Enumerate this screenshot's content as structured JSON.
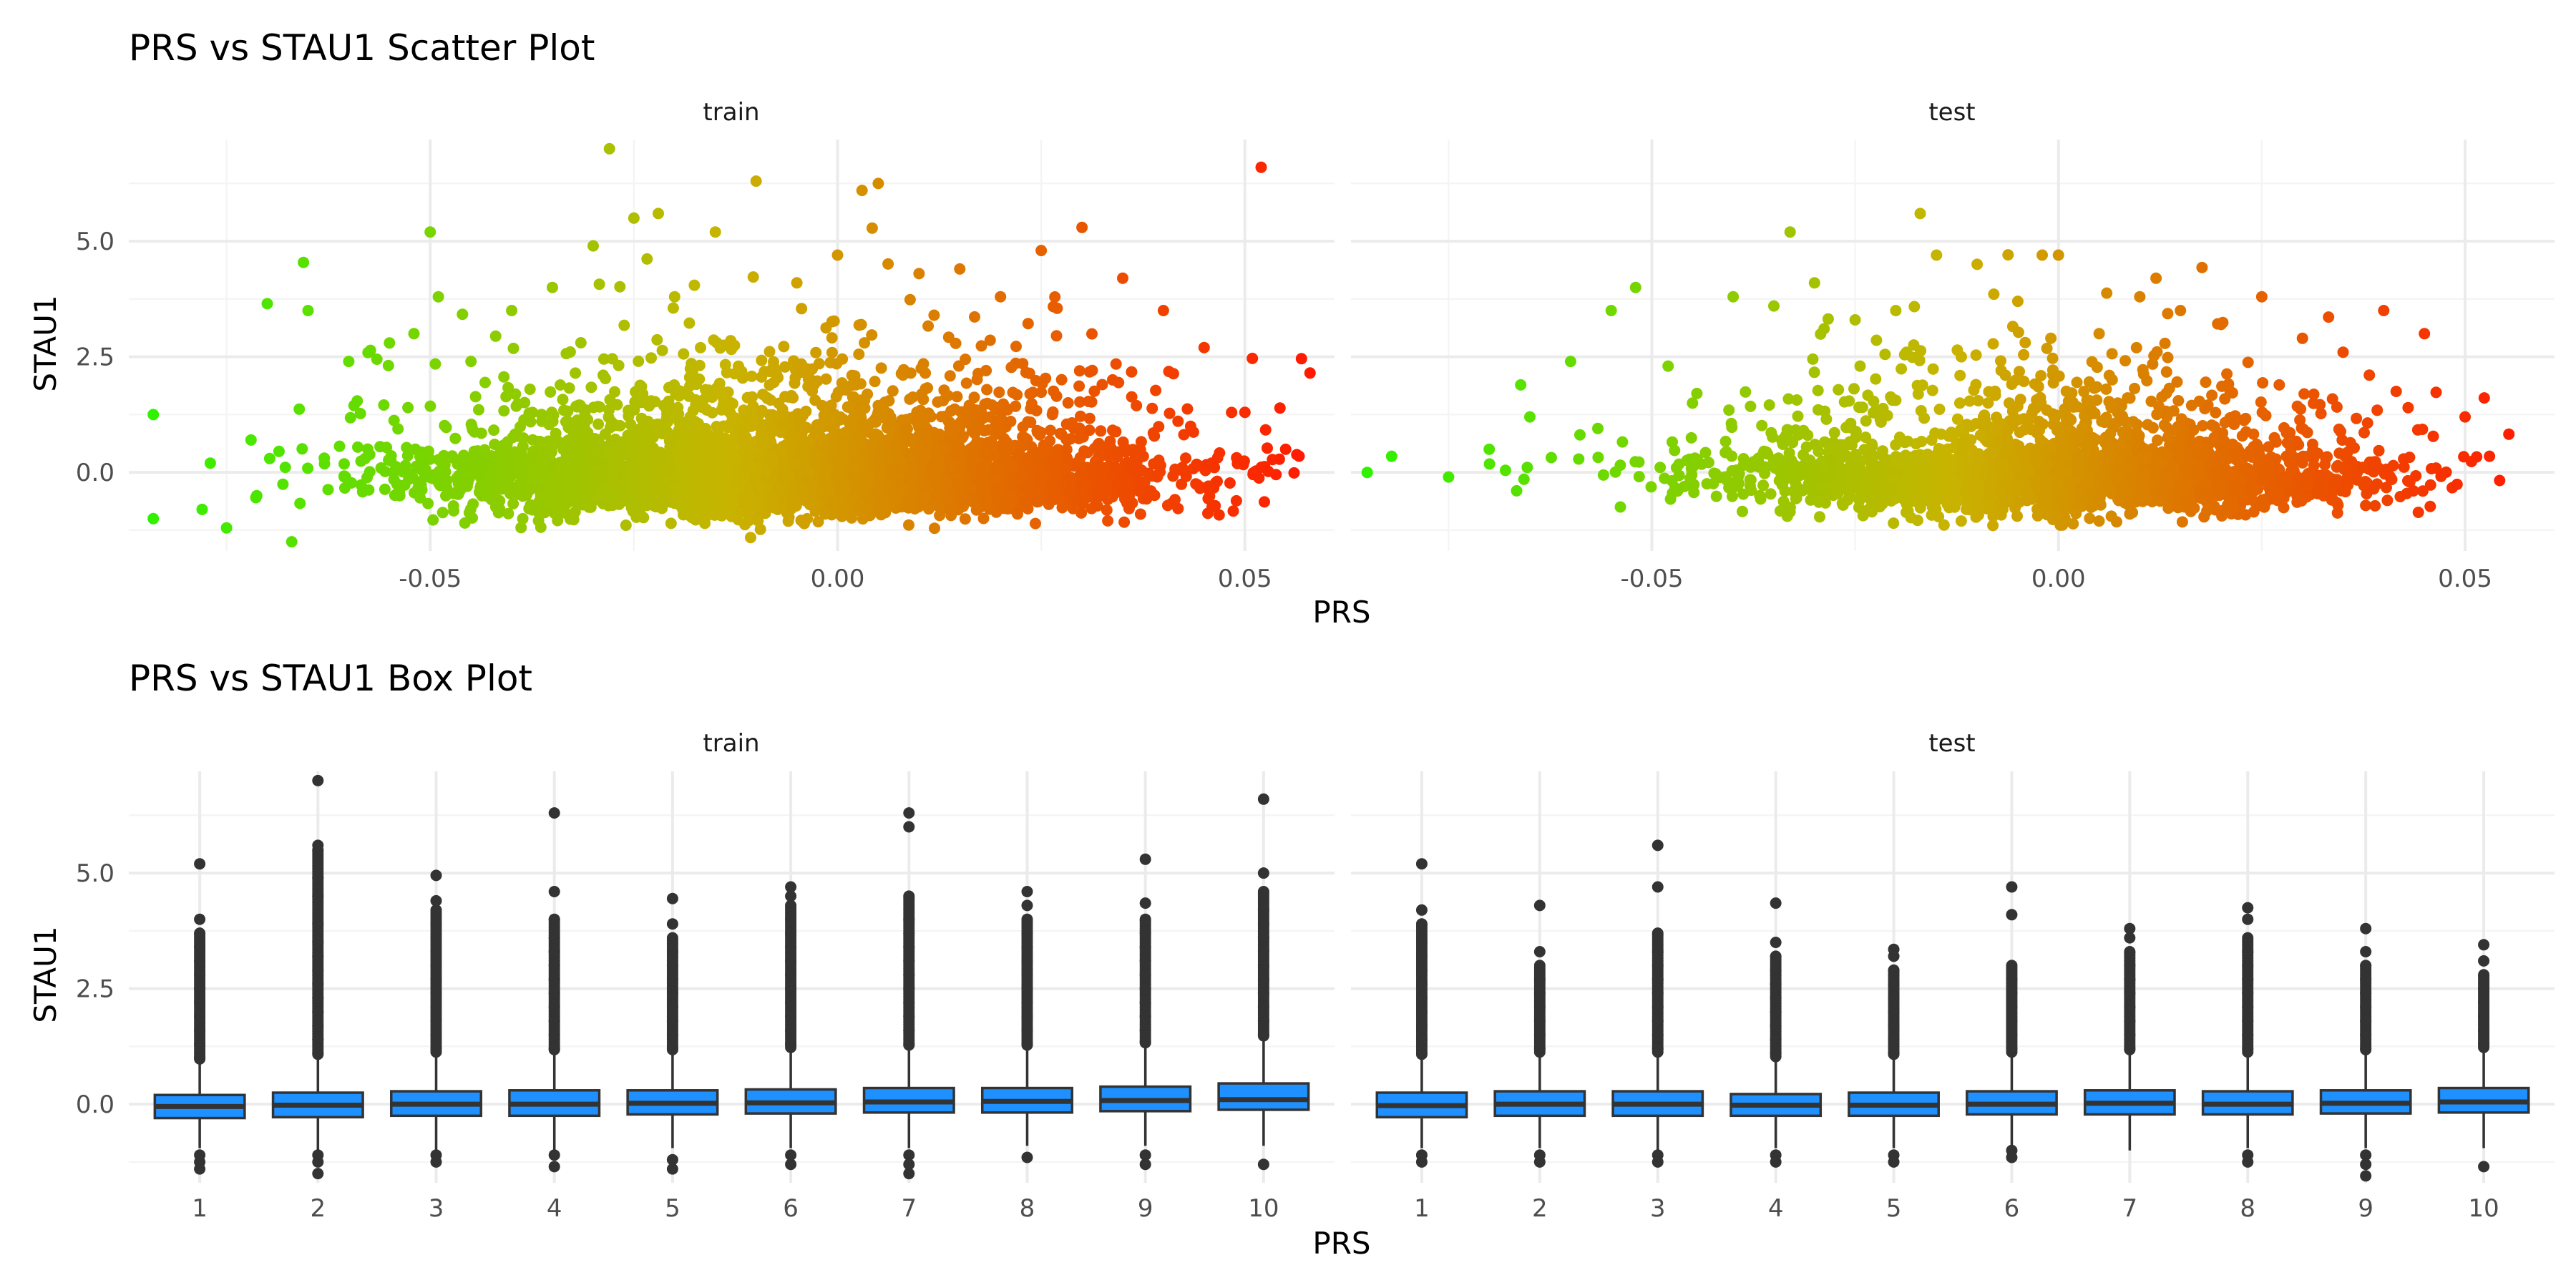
{
  "colors": {
    "grid_major": "#ebebeb",
    "grid_minor": "#f4f4f4",
    "gradient_low": "#2ef200",
    "gradient_mid": "#c8b400",
    "gradient_high": "#ff1a00",
    "box_fill": "#1e90ff",
    "box_line": "#333333"
  },
  "chart_data": [
    {
      "type": "scatter",
      "title": "PRS vs STAU1 Scatter Plot",
      "xlabel": "PRS",
      "ylabel": "STAU1",
      "xlim": [
        -0.087,
        0.061
      ],
      "ylim": [
        -1.7,
        7.2
      ],
      "x_ticks": [
        -0.05,
        0.0,
        0.05
      ],
      "x_tick_labels": [
        "-0.05",
        "0.00",
        "0.05"
      ],
      "y_ticks": [
        0.0,
        2.5,
        5.0
      ],
      "y_tick_labels": [
        "0.0",
        "2.5",
        "5.0"
      ],
      "grid": true,
      "color_scale": "gradient by PRS (green to red)",
      "facets": [
        {
          "name": "train",
          "x": [
            -0.084,
            -0.084,
            -0.078,
            -0.077,
            -0.075,
            -0.072,
            -0.07,
            -0.067,
            -0.065,
            -0.06,
            -0.058,
            -0.055,
            -0.052,
            -0.05,
            -0.049,
            -0.045,
            -0.04,
            -0.035,
            -0.03,
            -0.028,
            -0.025,
            -0.022,
            -0.02,
            -0.015,
            -0.01,
            -0.005,
            0.0,
            0.003,
            0.005,
            0.01,
            0.015,
            0.02,
            0.025,
            0.03,
            0.035,
            0.04,
            0.045,
            0.05,
            0.052,
            0.055,
            0.058
          ],
          "y": [
            1.25,
            -1.0,
            -0.8,
            0.2,
            -1.2,
            0.7,
            3.65,
            -1.5,
            3.5,
            2.4,
            0.3,
            2.8,
            3.0,
            5.2,
            3.8,
            2.4,
            3.5,
            4.0,
            4.9,
            7.0,
            5.5,
            5.6,
            3.8,
            5.2,
            6.3,
            4.1,
            4.7,
            6.1,
            6.25,
            4.3,
            4.4,
            3.8,
            4.8,
            5.3,
            4.2,
            3.5,
            2.7,
            1.3,
            6.6,
            0.5,
            2.15
          ]
        },
        {
          "name": "test",
          "x": [
            -0.085,
            -0.082,
            -0.075,
            -0.07,
            -0.065,
            -0.06,
            -0.055,
            -0.052,
            -0.048,
            -0.045,
            -0.04,
            -0.035,
            -0.033,
            -0.03,
            -0.025,
            -0.02,
            -0.017,
            -0.015,
            -0.01,
            -0.005,
            -0.002,
            0.0,
            0.005,
            0.01,
            0.012,
            0.015,
            0.02,
            0.025,
            0.03,
            0.035,
            0.04,
            0.043,
            0.045,
            0.05,
            0.053
          ],
          "y": [
            0.0,
            0.35,
            -0.1,
            0.5,
            1.2,
            2.4,
            3.5,
            4.0,
            2.3,
            1.5,
            3.8,
            3.6,
            5.2,
            4.1,
            3.3,
            3.5,
            5.6,
            4.7,
            4.5,
            3.7,
            4.7,
            4.7,
            3.0,
            3.8,
            4.2,
            3.5,
            3.2,
            3.8,
            2.9,
            2.6,
            3.5,
            1.4,
            3.0,
            1.2,
            0.35
          ]
        }
      ]
    },
    {
      "type": "box",
      "title": "PRS vs STAU1 Box Plot",
      "xlabel": "PRS",
      "ylabel": "STAU1",
      "categories": [
        "1",
        "2",
        "3",
        "4",
        "5",
        "6",
        "7",
        "8",
        "9",
        "10"
      ],
      "ylim": [
        -1.7,
        7.2
      ],
      "y_ticks": [
        0.0,
        2.5,
        5.0
      ],
      "y_tick_labels": [
        "0.0",
        "2.5",
        "5.0"
      ],
      "grid": true,
      "facets": [
        {
          "name": "train",
          "boxes": [
            {
              "q1": -0.3,
              "median": -0.05,
              "q3": 0.2,
              "lower": -0.95,
              "upper": 0.9,
              "outliers_high": [
                1.0,
                1.3,
                1.6,
                1.9,
                2.2,
                2.5,
                2.8,
                3.1,
                3.4,
                3.7,
                4.0,
                5.2
              ],
              "outliers_low": [
                -1.1,
                -1.25,
                -1.4
              ]
            },
            {
              "q1": -0.28,
              "median": -0.02,
              "q3": 0.25,
              "lower": -1.0,
              "upper": 1.0,
              "outliers_high": [
                1.1,
                1.4,
                1.7,
                2.0,
                2.3,
                2.6,
                2.9,
                3.2,
                3.5,
                3.9,
                4.5,
                4.9,
                5.5,
                5.6,
                7.0
              ],
              "outliers_low": [
                -1.1,
                -1.25,
                -1.5
              ]
            },
            {
              "q1": -0.25,
              "median": 0.0,
              "q3": 0.28,
              "lower": -1.0,
              "upper": 1.05,
              "outliers_high": [
                1.2,
                1.5,
                1.8,
                2.1,
                2.4,
                2.7,
                3.0,
                3.3,
                3.6,
                3.9,
                4.2,
                4.4,
                4.95
              ],
              "outliers_low": [
                -1.1,
                -1.25
              ]
            },
            {
              "q1": -0.25,
              "median": 0.0,
              "q3": 0.3,
              "lower": -1.0,
              "upper": 1.1,
              "outliers_high": [
                1.2,
                1.5,
                1.8,
                2.1,
                2.4,
                2.7,
                3.0,
                3.3,
                3.6,
                4.0,
                4.6,
                6.3
              ],
              "outliers_low": [
                -1.1,
                -1.35
              ]
            },
            {
              "q1": -0.22,
              "median": 0.02,
              "q3": 0.3,
              "lower": -0.95,
              "upper": 1.1,
              "outliers_high": [
                1.2,
                1.5,
                1.8,
                2.1,
                2.4,
                2.7,
                3.0,
                3.3,
                3.6,
                3.9,
                4.45
              ],
              "outliers_low": [
                -1.2,
                -1.4
              ]
            },
            {
              "q1": -0.2,
              "median": 0.03,
              "q3": 0.32,
              "lower": -0.95,
              "upper": 1.15,
              "outliers_high": [
                1.3,
                1.6,
                1.9,
                2.2,
                2.5,
                2.8,
                3.1,
                3.4,
                3.7,
                4.0,
                4.3,
                4.5,
                4.7
              ],
              "outliers_low": [
                -1.1,
                -1.3
              ]
            },
            {
              "q1": -0.18,
              "median": 0.05,
              "q3": 0.35,
              "lower": -0.95,
              "upper": 1.2,
              "outliers_high": [
                1.3,
                1.6,
                1.9,
                2.2,
                2.5,
                2.8,
                3.1,
                3.4,
                3.7,
                4.0,
                4.5,
                6.0,
                6.3
              ],
              "outliers_low": [
                -1.1,
                -1.3,
                -1.5
              ]
            },
            {
              "q1": -0.18,
              "median": 0.06,
              "q3": 0.35,
              "lower": -0.9,
              "upper": 1.2,
              "outliers_high": [
                1.3,
                1.6,
                1.9,
                2.2,
                2.5,
                2.8,
                3.1,
                3.4,
                3.7,
                4.0,
                4.3,
                4.6
              ],
              "outliers_low": [
                -1.15
              ]
            },
            {
              "q1": -0.15,
              "median": 0.08,
              "q3": 0.38,
              "lower": -0.9,
              "upper": 1.25,
              "outliers_high": [
                1.35,
                1.6,
                1.9,
                2.2,
                2.5,
                2.8,
                3.1,
                3.4,
                3.7,
                4.0,
                4.35,
                5.3
              ],
              "outliers_low": [
                -1.1,
                -1.3
              ]
            },
            {
              "q1": -0.12,
              "median": 0.1,
              "q3": 0.45,
              "lower": -0.9,
              "upper": 1.4,
              "outliers_high": [
                1.5,
                1.8,
                2.1,
                2.4,
                2.7,
                3.0,
                3.3,
                3.6,
                3.9,
                4.2,
                4.6,
                5.0,
                6.6
              ],
              "outliers_low": [
                -1.3
              ]
            }
          ]
        },
        {
          "name": "test",
          "boxes": [
            {
              "q1": -0.28,
              "median": -0.03,
              "q3": 0.25,
              "lower": -0.95,
              "upper": 1.0,
              "outliers_high": [
                1.1,
                1.4,
                1.7,
                2.0,
                2.3,
                2.6,
                2.9,
                3.2,
                3.5,
                3.9,
                4.2,
                5.2
              ],
              "outliers_low": [
                -1.1,
                -1.25
              ]
            },
            {
              "q1": -0.25,
              "median": 0.0,
              "q3": 0.28,
              "lower": -0.95,
              "upper": 1.05,
              "outliers_high": [
                1.2,
                1.5,
                1.8,
                2.1,
                2.4,
                2.7,
                3.0,
                3.3,
                4.3
              ],
              "outliers_low": [
                -1.1,
                -1.25
              ]
            },
            {
              "q1": -0.25,
              "median": 0.0,
              "q3": 0.28,
              "lower": -1.0,
              "upper": 1.05,
              "outliers_high": [
                1.2,
                1.5,
                1.8,
                2.1,
                2.4,
                2.7,
                3.0,
                3.3,
                3.7,
                4.7,
                5.6
              ],
              "outliers_low": [
                -1.1,
                -1.25
              ]
            },
            {
              "q1": -0.25,
              "median": -0.02,
              "q3": 0.22,
              "lower": -0.95,
              "upper": 0.95,
              "outliers_high": [
                1.1,
                1.4,
                1.7,
                2.0,
                2.3,
                2.6,
                2.9,
                3.2,
                3.5,
                4.35
              ],
              "outliers_low": [
                -1.1,
                -1.25
              ]
            },
            {
              "q1": -0.25,
              "median": -0.02,
              "q3": 0.25,
              "lower": -0.95,
              "upper": 1.0,
              "outliers_high": [
                1.1,
                1.4,
                1.7,
                2.0,
                2.3,
                2.6,
                2.9,
                3.2,
                3.35
              ],
              "outliers_low": [
                -1.1,
                -1.25
              ]
            },
            {
              "q1": -0.22,
              "median": 0.0,
              "q3": 0.28,
              "lower": -0.95,
              "upper": 1.05,
              "outliers_high": [
                1.2,
                1.5,
                1.8,
                2.1,
                2.4,
                2.7,
                3.0,
                4.1,
                4.7
              ],
              "outliers_low": [
                -1.0,
                -1.15
              ]
            },
            {
              "q1": -0.22,
              "median": 0.02,
              "q3": 0.3,
              "lower": -1.0,
              "upper": 1.1,
              "outliers_high": [
                1.2,
                1.5,
                1.8,
                2.1,
                2.4,
                2.7,
                3.0,
                3.3,
                3.6,
                3.8
              ],
              "outliers_low": []
            },
            {
              "q1": -0.22,
              "median": 0.0,
              "q3": 0.28,
              "lower": -0.95,
              "upper": 1.05,
              "outliers_high": [
                1.2,
                1.5,
                1.8,
                2.1,
                2.4,
                2.7,
                3.0,
                3.3,
                3.6,
                4.0,
                4.25
              ],
              "outliers_low": [
                -1.1,
                -1.25
              ]
            },
            {
              "q1": -0.2,
              "median": 0.02,
              "q3": 0.3,
              "lower": -0.95,
              "upper": 1.1,
              "outliers_high": [
                1.2,
                1.5,
                1.8,
                2.1,
                2.4,
                2.7,
                3.0,
                3.3,
                3.8
              ],
              "outliers_low": [
                -1.1,
                -1.3,
                -1.55
              ]
            },
            {
              "q1": -0.18,
              "median": 0.05,
              "q3": 0.35,
              "lower": -0.95,
              "upper": 1.15,
              "outliers_high": [
                1.3,
                1.6,
                1.9,
                2.2,
                2.5,
                2.8,
                3.1,
                3.45
              ],
              "outliers_low": [
                -1.35
              ]
            }
          ]
        }
      ]
    }
  ]
}
